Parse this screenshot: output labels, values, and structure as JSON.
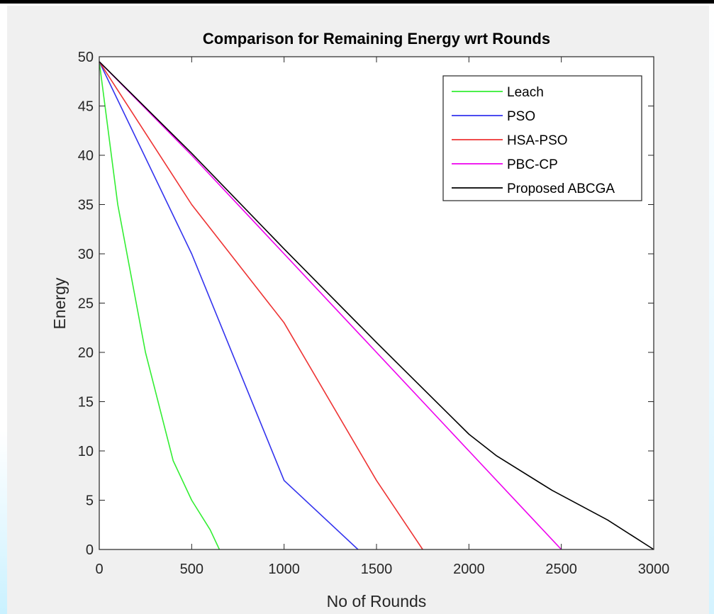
{
  "chart_data": {
    "type": "line",
    "title": "Comparison for Remaining Energy wrt Rounds",
    "xlabel": "No of Rounds",
    "ylabel": "Energy",
    "xlim": [
      0,
      3000
    ],
    "ylim": [
      0,
      50
    ],
    "xticks": [
      0,
      500,
      1000,
      1500,
      2000,
      2500,
      3000
    ],
    "yticks": [
      0,
      5,
      10,
      15,
      20,
      25,
      30,
      35,
      40,
      45,
      50
    ],
    "grid": false,
    "legend_position": "top-right",
    "series": [
      {
        "name": "Leach",
        "color": "#33ee33",
        "x": [
          0,
          100,
          250,
          400,
          500,
          600,
          650
        ],
        "y": [
          49.5,
          35,
          20,
          9,
          5,
          2,
          0
        ]
      },
      {
        "name": "PSO",
        "color": "#3333ee",
        "x": [
          0,
          500,
          1000,
          1400
        ],
        "y": [
          49.5,
          30,
          7,
          0
        ]
      },
      {
        "name": "HSA-PSO",
        "color": "#ee3333",
        "x": [
          0,
          500,
          1000,
          1500,
          1750
        ],
        "y": [
          49.5,
          35,
          23,
          7,
          0
        ]
      },
      {
        "name": "PBC-CP",
        "color": "#ee00ee",
        "x": [
          0,
          500,
          1000,
          1500,
          2000,
          2500
        ],
        "y": [
          49.5,
          40,
          30,
          20,
          10,
          0
        ]
      },
      {
        "name": "Proposed ABCGA",
        "color": "#000000",
        "x": [
          0,
          500,
          1000,
          1500,
          2000,
          2150,
          2450,
          2750,
          3000
        ],
        "y": [
          49.5,
          40.2,
          30.5,
          21,
          11.7,
          9.5,
          6,
          3,
          0
        ]
      }
    ]
  }
}
